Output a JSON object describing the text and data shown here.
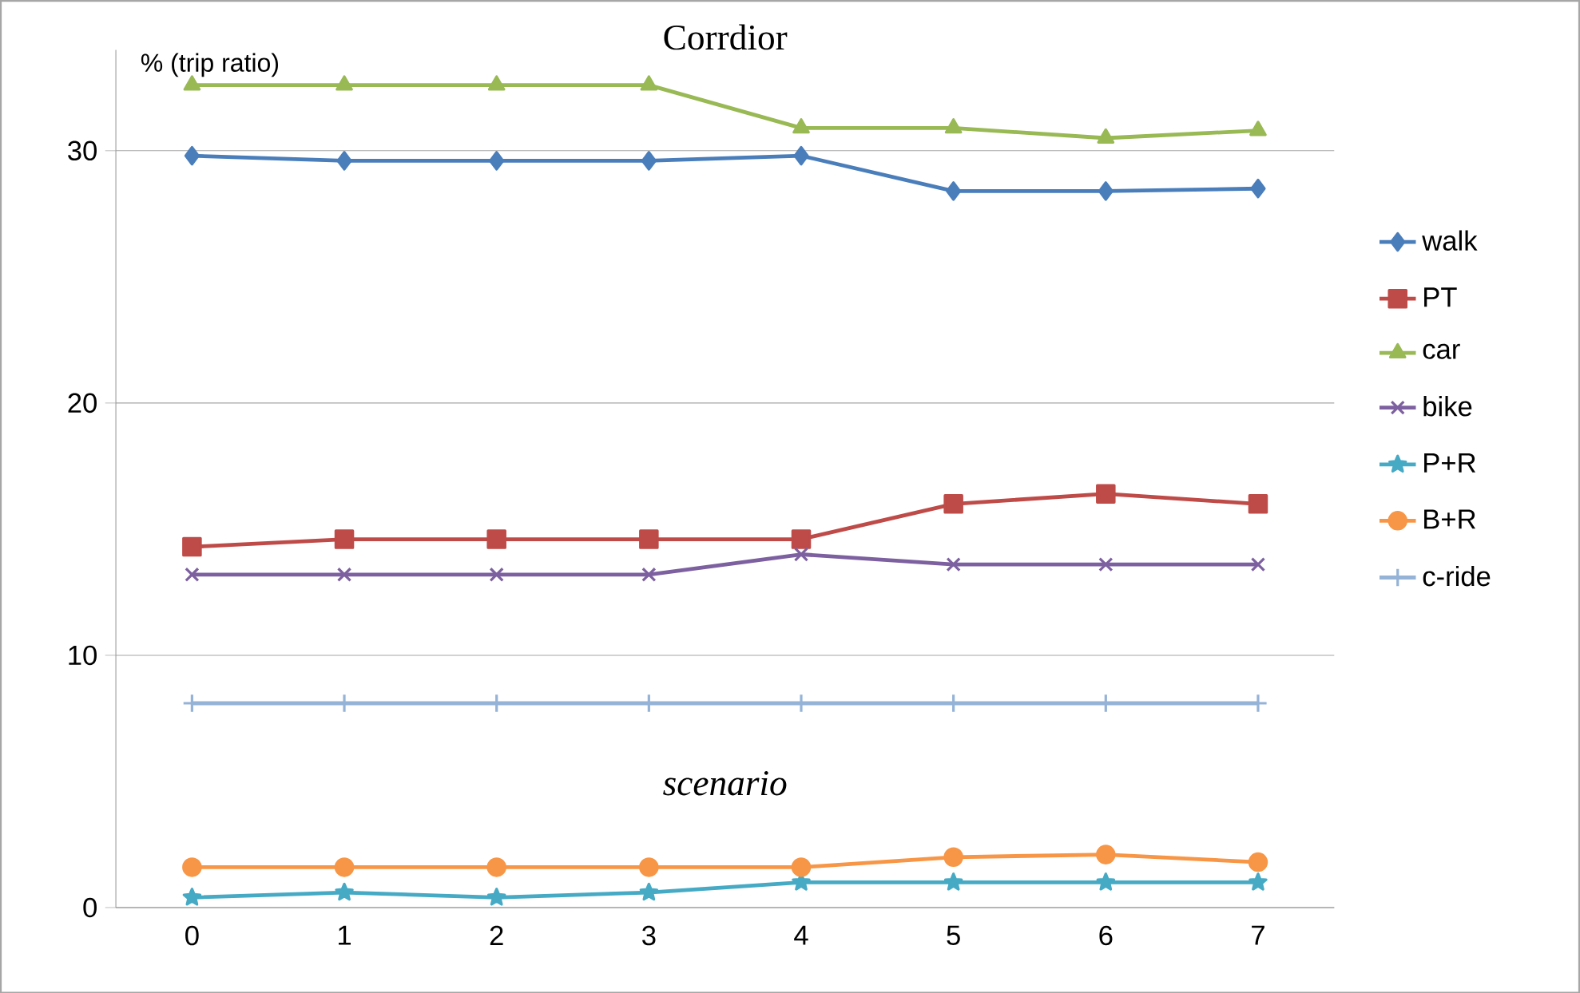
{
  "chart_data": {
    "type": "line",
    "title": "Corrdior",
    "ylabel": "% (trip ratio)",
    "annotations": [
      "scenario"
    ],
    "categories": [
      "0",
      "1",
      "2",
      "3",
      "4",
      "5",
      "6",
      "7"
    ],
    "ylim": [
      0,
      34
    ],
    "yticks": [
      0,
      10,
      20,
      30
    ],
    "grid": "y",
    "legend": "right",
    "series": [
      {
        "name": "walk",
        "color": "#4a7ebb",
        "marker": "diamond",
        "values": [
          29.8,
          29.6,
          29.6,
          29.6,
          29.8,
          28.4,
          28.4,
          28.5
        ]
      },
      {
        "name": "PT",
        "color": "#be4b48",
        "marker": "square",
        "values": [
          14.3,
          14.6,
          14.6,
          14.6,
          14.6,
          16.0,
          16.4,
          16.0
        ]
      },
      {
        "name": "car",
        "color": "#98b954",
        "marker": "triangle",
        "values": [
          32.6,
          32.6,
          32.6,
          32.6,
          30.9,
          30.9,
          30.5,
          30.8
        ]
      },
      {
        "name": "bike",
        "color": "#7d60a0",
        "marker": "cross",
        "values": [
          13.2,
          13.2,
          13.2,
          13.2,
          14.0,
          13.6,
          13.6,
          13.6
        ]
      },
      {
        "name": "P+R",
        "color": "#46aac5",
        "marker": "star",
        "values": [
          0.4,
          0.6,
          0.4,
          0.6,
          1.0,
          1.0,
          1.0,
          1.0
        ]
      },
      {
        "name": "B+R",
        "color": "#f79646",
        "marker": "circle",
        "values": [
          1.6,
          1.6,
          1.6,
          1.6,
          1.6,
          2.0,
          2.1,
          1.8
        ]
      },
      {
        "name": "c-ride",
        "color": "#95b3d7",
        "marker": "plus",
        "values": [
          8.1,
          8.1,
          8.1,
          8.1,
          8.1,
          8.1,
          8.1,
          8.1
        ]
      }
    ]
  }
}
